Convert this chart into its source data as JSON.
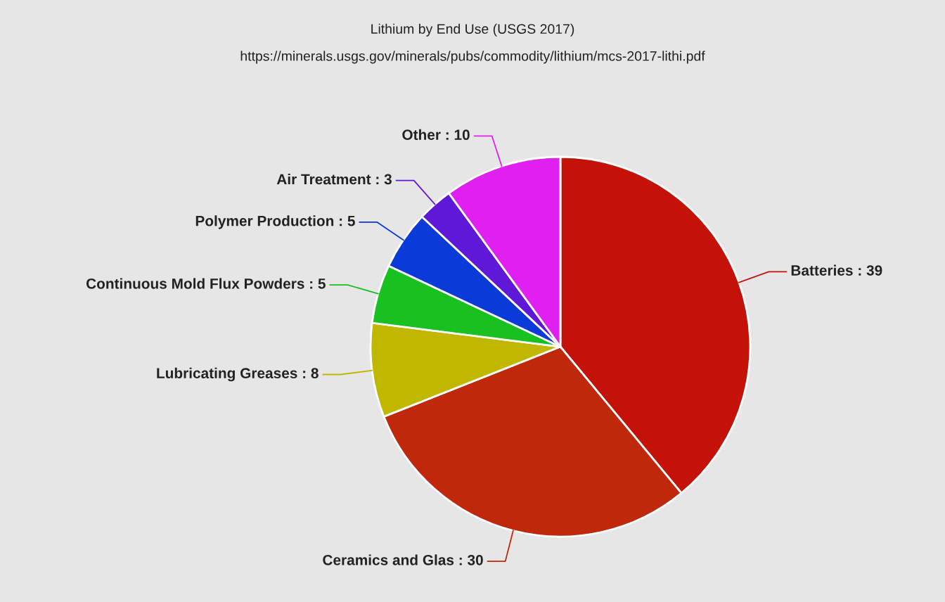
{
  "chart_data": {
    "type": "pie",
    "title": "Lithium by End Use (USGS 2017)",
    "subtitle": "https://minerals.usgs.gov/minerals/pubs/commodity/lithium/mcs-2017-lithi.pdf",
    "categories": [
      "Batteries",
      "Ceramics and Glas",
      "Lubricating Greases",
      "Continuous Mold Flux Powders",
      "Polymer Production",
      "Air Treatment",
      "Other"
    ],
    "values": [
      39,
      30,
      8,
      5,
      5,
      3,
      10
    ],
    "colors": [
      "#c41208",
      "#c0280c",
      "#c0b800",
      "#18c020",
      "#0a3ad8",
      "#6018d8",
      "#e020f0"
    ],
    "value_labels": [
      ": 39",
      ": 30",
      ": 8",
      ": 5",
      ": 5",
      ": 3",
      ": 10"
    ]
  }
}
